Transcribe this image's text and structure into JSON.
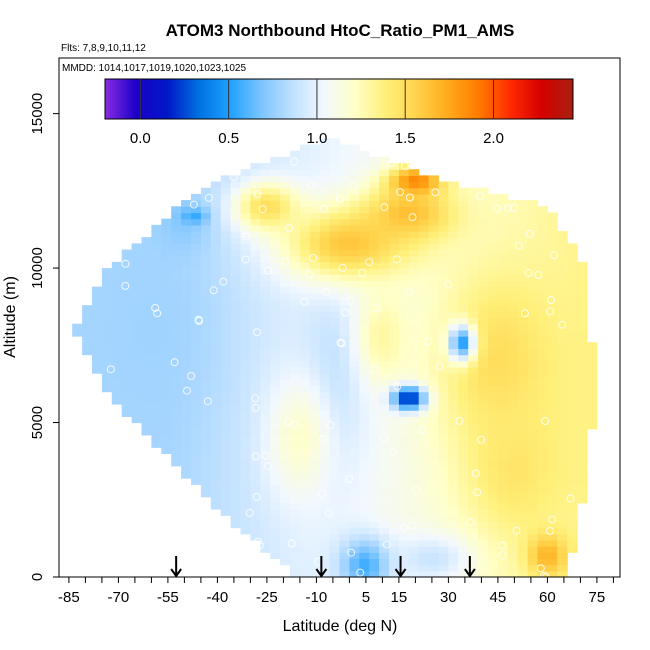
{
  "chart_data": {
    "type": "heatmap",
    "title": "ATOM3 Northbound HtoC_Ratio_PM1_AMS",
    "flights_label": "Flts: 7,8,9,10,11,12",
    "dates_label": "MMDD: 1014,1017,1019,1020,1023,1025",
    "xlabel": "Latitude (deg N)",
    "ylabel": "Altitude (m)",
    "xlim": [
      -88,
      82
    ],
    "ylim": [
      0,
      16800
    ],
    "x_ticks": [
      "-85",
      "-70",
      "-55",
      "-40",
      "-25",
      "-10",
      "5",
      "15",
      "30",
      "45",
      "60",
      "75"
    ],
    "x_tick_values": [
      -85,
      -70,
      -55,
      -40,
      -25,
      -10,
      5,
      15,
      30,
      45,
      60,
      75
    ],
    "y_ticks": [
      "0",
      "5000",
      "10000",
      "15000"
    ],
    "y_tick_values": [
      0,
      5000,
      10000,
      15000
    ],
    "colorbar": {
      "range": [
        -0.2,
        2.45
      ],
      "ticks": [
        "0.0",
        "0.5",
        "1.0",
        "1.5",
        "2.0"
      ],
      "tick_values": [
        0.0,
        0.5,
        1.0,
        1.5,
        2.0
      ],
      "colors": [
        "#8a2be2",
        "#1a00c8",
        "#0018c8",
        "#0070e0",
        "#1ea0ff",
        "#7cc4ff",
        "#bfe0ff",
        "#f2f8ff",
        "#ffffc8",
        "#fff07a",
        "#ffd24a",
        "#ffaa1a",
        "#ff7a00",
        "#ff2a00",
        "#d40000",
        "#a82010"
      ]
    },
    "arrow_latitudes": [
      -52.5,
      -8.5,
      15.5,
      36.5
    ],
    "envelope": {
      "lat_min": [
        [
          0,
          -16
        ],
        [
          2000,
          -38
        ],
        [
          4000,
          -56
        ],
        [
          6000,
          -74
        ],
        [
          8000,
          -83
        ],
        [
          10000,
          -73
        ],
        [
          12000,
          -52
        ],
        [
          12800,
          -40
        ],
        [
          14200,
          -8
        ]
      ],
      "lat_max": [
        [
          0,
          66
        ],
        [
          2000,
          70
        ],
        [
          4000,
          72
        ],
        [
          6000,
          76
        ],
        [
          8000,
          73
        ],
        [
          10000,
          72
        ],
        [
          12000,
          60
        ],
        [
          12800,
          30
        ],
        [
          14200,
          -6
        ]
      ]
    },
    "ratio_field": {
      "background": 0.95,
      "features": [
        {
          "name": "southern-low",
          "lat": -60,
          "alt": 8000,
          "value": 0.78,
          "lat_width": 20,
          "alt_width": 3500
        },
        {
          "name": "southern-low-upper",
          "lat": -50,
          "alt": 11500,
          "value": 0.72,
          "lat_width": 8,
          "alt_width": 900
        },
        {
          "name": "central-low",
          "lat": -5,
          "alt": 6500,
          "value": 0.85,
          "lat_width": 10,
          "alt_width": 3000
        },
        {
          "name": "upper-high",
          "lat": 0,
          "alt": 10800,
          "value": 1.62,
          "lat_width": 20,
          "alt_width": 1200
        },
        {
          "name": "upper-high-left",
          "lat": -25,
          "alt": 12000,
          "value": 1.5,
          "lat_width": 10,
          "alt_width": 800
        },
        {
          "name": "peak-orange",
          "lat": 20,
          "alt": 12800,
          "value": 1.95,
          "lat_width": 8,
          "alt_width": 500
        },
        {
          "name": "upper-band",
          "lat": 18,
          "alt": 11800,
          "value": 1.65,
          "lat_width": 14,
          "alt_width": 900
        },
        {
          "name": "mid-high-right",
          "lat": 45,
          "alt": 7000,
          "value": 1.5,
          "lat_width": 18,
          "alt_width": 2800
        },
        {
          "name": "lower-right",
          "lat": 50,
          "alt": 3500,
          "value": 1.45,
          "lat_width": 15,
          "alt_width": 2200
        },
        {
          "name": "surface-right",
          "lat": 60,
          "alt": 700,
          "value": 1.7,
          "lat_width": 6,
          "alt_width": 700
        },
        {
          "name": "mid-yellow",
          "lat": 10,
          "alt": 7800,
          "value": 1.3,
          "lat_width": 8,
          "alt_width": 1500
        },
        {
          "name": "central-yellow",
          "lat": -15,
          "alt": 4500,
          "value": 1.2,
          "lat_width": 10,
          "alt_width": 2000
        },
        {
          "name": "blue-core",
          "lat": 18,
          "alt": 5800,
          "value": 0.12,
          "lat_width": 5,
          "alt_width": 380
        },
        {
          "name": "blue-pocket",
          "lat": 34,
          "alt": 7600,
          "value": 0.5,
          "lat_width": 4,
          "alt_width": 600
        },
        {
          "name": "left-upper-blue",
          "lat": -47,
          "alt": 11700,
          "value": 0.55,
          "lat_width": 4,
          "alt_width": 250
        },
        {
          "name": "surface-blue",
          "lat": 5,
          "alt": 400,
          "value": 0.55,
          "lat_width": 8,
          "alt_width": 900
        },
        {
          "name": "surface-light",
          "lat": 25,
          "alt": 600,
          "value": 0.9,
          "lat_width": 12,
          "alt_width": 800
        }
      ]
    }
  }
}
